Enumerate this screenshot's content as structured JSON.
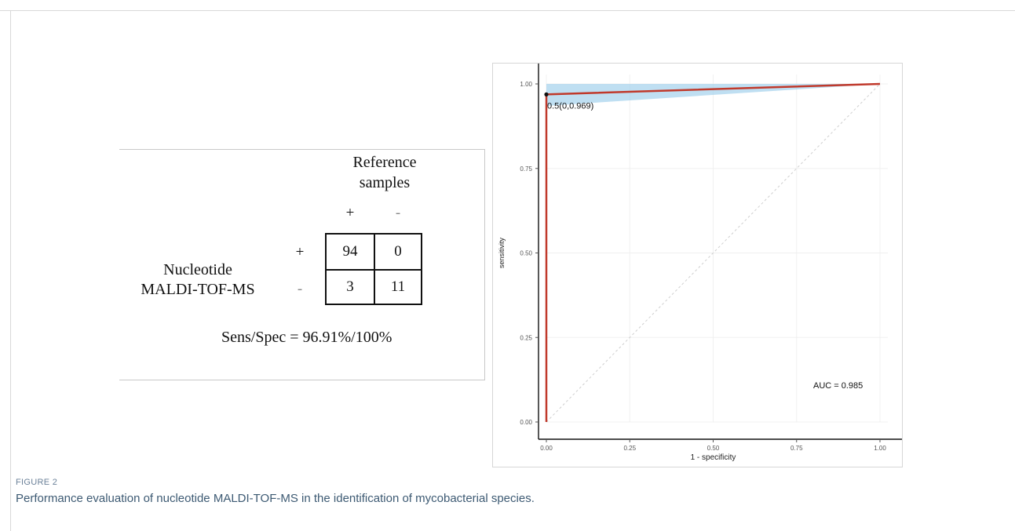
{
  "matrix": {
    "column_header": [
      "Reference",
      "samples"
    ],
    "column_signs": [
      "+",
      "-"
    ],
    "row_label": [
      "Nucleotide",
      "MALDI-TOF-MS"
    ],
    "row_signs": [
      "+",
      "-"
    ],
    "cells": [
      [
        "94",
        "0"
      ],
      [
        "3",
        "11"
      ]
    ],
    "summary": "Sens/Spec = 96.91%/100%"
  },
  "chart_data": {
    "type": "line",
    "title": "",
    "xlabel": "1 - specificity",
    "ylabel": "sensitivity",
    "xlim": [
      0,
      1
    ],
    "ylim": [
      0,
      1
    ],
    "x_ticks": [
      "0.00",
      "0.25",
      "0.50",
      "0.75",
      "1.00"
    ],
    "y_ticks": [
      "0.00",
      "0.25",
      "0.50",
      "0.75",
      "1.00"
    ],
    "grid": true,
    "series": [
      {
        "role": "roc-curve",
        "color": "#c0392b",
        "points": [
          [
            0,
            0
          ],
          [
            0,
            0.969
          ],
          [
            1,
            1
          ]
        ]
      },
      {
        "role": "reference-diagonal",
        "color": "#cfcfcf",
        "points": [
          [
            0,
            0
          ],
          [
            1,
            1
          ]
        ]
      }
    ],
    "confidence_band": {
      "color": "#a9d4ee",
      "upper": [
        [
          0,
          1.0
        ],
        [
          1,
          1
        ]
      ],
      "lower": [
        [
          0,
          0.935
        ],
        [
          1,
          1
        ]
      ]
    },
    "threshold_point": {
      "x": 0,
      "y": 0.969,
      "label": "0.5(0,0.969)"
    },
    "annotation": "AUC =  0.985"
  },
  "caption": {
    "label": "FIGURE 2",
    "text": "Performance evaluation of nucleotide MALDI-TOF-MS in the identification of mycobacterial species."
  }
}
